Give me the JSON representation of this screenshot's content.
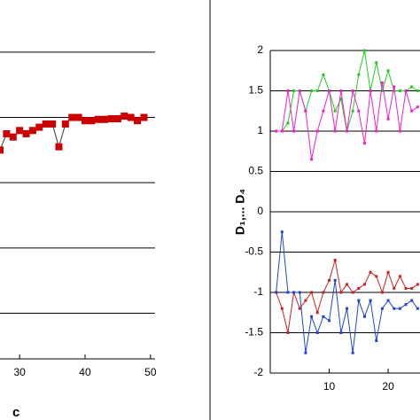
{
  "chart_data": [
    {
      "type": "line",
      "xlabel": "c",
      "color": "#cc0000",
      "marker": "square",
      "line_color": "#333333",
      "x": [
        27,
        28,
        29,
        30,
        31,
        32,
        33,
        34,
        35,
        36,
        37,
        38,
        39,
        40,
        41,
        42,
        43,
        44,
        45,
        46,
        47,
        48,
        49
      ],
      "values": [
        0.5,
        0.75,
        0.7,
        0.8,
        0.75,
        0.8,
        0.85,
        0.9,
        0.9,
        0.55,
        0.9,
        1.0,
        1.0,
        0.95,
        0.95,
        0.97,
        0.97,
        0.98,
        0.98,
        1.02,
        1.0,
        0.95,
        1.0
      ],
      "xlim": [
        27,
        50.7
      ],
      "xticks": [
        30,
        40,
        50
      ],
      "ylim": [
        -2.7,
        2.8
      ],
      "ygrid": [
        2,
        1,
        0,
        -1,
        -2
      ],
      "grid": true
    },
    {
      "type": "line",
      "ylabel": "D₁,... D₄",
      "marker": "dot",
      "x": [
        1,
        2,
        3,
        4,
        5,
        6,
        7,
        8,
        9,
        10,
        11,
        12,
        13,
        14,
        15,
        16,
        17,
        18,
        19,
        20,
        21,
        22,
        23,
        24,
        25
      ],
      "series": [
        {
          "color": "#22cc22",
          "values": [
            1,
            1,
            1.1,
            1.5,
            1.5,
            1.25,
            1.5,
            1.5,
            1.7,
            1.5,
            1.25,
            1.4,
            1.0,
            1.25,
            1.7,
            2.0,
            1.5,
            1.85,
            1.5,
            1.75,
            1.5,
            1.5,
            1.5,
            1.55,
            1.5
          ]
        },
        {
          "color": "#ee22cc",
          "values": [
            1,
            1,
            1.5,
            1.0,
            1.5,
            1.25,
            0.65,
            1.0,
            1.25,
            1.5,
            1.0,
            1.5,
            1.0,
            1.5,
            1.25,
            0.85,
            1.5,
            1.0,
            1.6,
            1.15,
            1.55,
            1.0,
            1.5,
            1.25,
            1.3
          ]
        },
        {
          "color": "#cc2222",
          "values": [
            -1,
            -1.2,
            -1.5,
            -1.0,
            -1.2,
            -1.1,
            -1.0,
            -1.25,
            -1.0,
            -0.85,
            -0.6,
            -1.0,
            -0.9,
            -1.0,
            -0.95,
            -0.9,
            -0.75,
            -0.8,
            -1.0,
            -0.75,
            -0.95,
            -0.8,
            -0.95,
            -0.95,
            -0.9
          ]
        },
        {
          "color": "#2244cc",
          "values": [
            -1.0,
            -0.25,
            -1.0,
            -1.0,
            -1.0,
            -1.75,
            -1.3,
            -1.5,
            -1.3,
            -1.35,
            -0.85,
            -1.5,
            -1.2,
            -1.75,
            -1.1,
            -1.3,
            -1.1,
            -1.6,
            -1.2,
            -1.1,
            -1.2,
            -1.2,
            -1.15,
            -1.1,
            -1.2
          ]
        }
      ],
      "xlim": [
        0,
        25.4
      ],
      "xticks": [
        10,
        20
      ],
      "ylim": [
        -2,
        2
      ],
      "yticks": [
        -2,
        -1.5,
        -1,
        -0.5,
        0,
        0.5,
        1,
        1.5,
        2
      ],
      "grid": true
    }
  ]
}
